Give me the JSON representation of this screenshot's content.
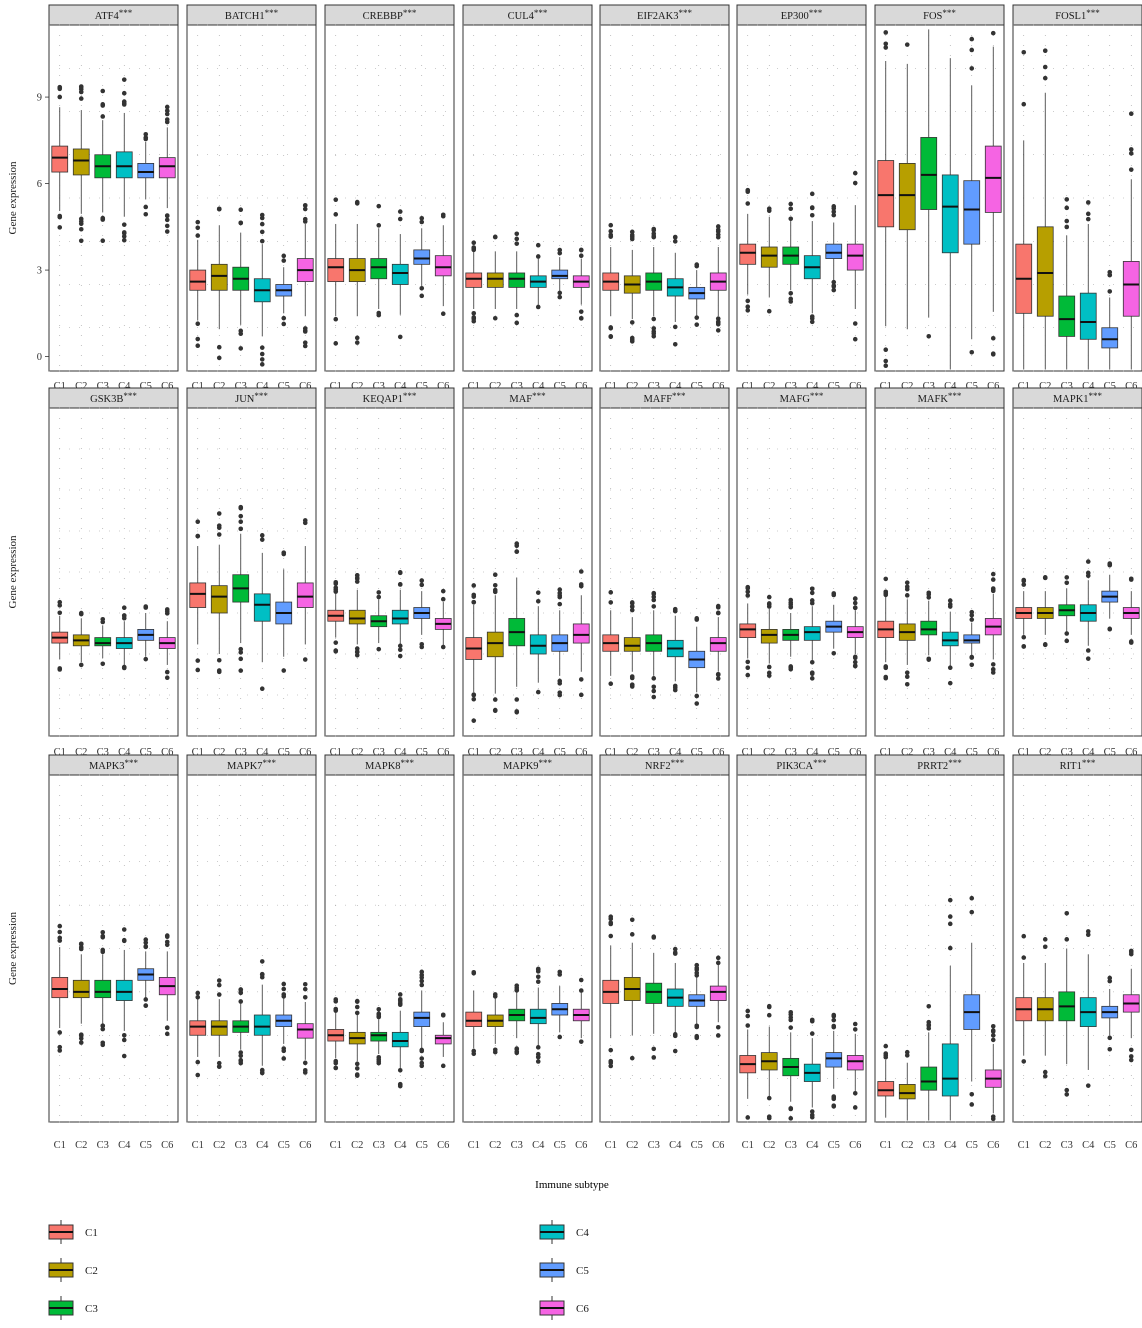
{
  "figure": {
    "xlabel": "Immune subtype",
    "ylabel": "Gene expression",
    "significance": "***"
  },
  "legend": {
    "items": [
      {
        "label": "C1",
        "color": "#F8766D"
      },
      {
        "label": "C2",
        "color": "#B79F00"
      },
      {
        "label": "C3",
        "color": "#00BA38"
      },
      {
        "label": "C4",
        "color": "#00BFC4"
      },
      {
        "label": "C5",
        "color": "#619CFF"
      },
      {
        "label": "C6",
        "color": "#F564E3"
      }
    ]
  },
  "chart_data": {
    "type": "boxplot",
    "categories": [
      "C1",
      "C2",
      "C3",
      "C4",
      "C5",
      "C6"
    ],
    "ylabel": "Gene expression",
    "xlabel": "Immune subtype",
    "ylim": [
      -0.5,
      11.5
    ],
    "yticks": [
      0,
      3,
      6,
      9
    ],
    "grid": "dotted",
    "legend_position": "bottom",
    "panels": [
      {
        "gene": "ATF4",
        "sig": "***",
        "stats": [
          [
            6.4,
            6.9,
            7.3
          ],
          [
            6.3,
            6.8,
            7.2
          ],
          [
            6.2,
            6.6,
            7.0
          ],
          [
            6.2,
            6.6,
            7.1
          ],
          [
            6.2,
            6.4,
            6.7
          ],
          [
            6.2,
            6.6,
            6.9
          ]
        ]
      },
      {
        "gene": "BATCH1",
        "sig": "***",
        "stats": [
          [
            2.3,
            2.6,
            3.0
          ],
          [
            2.3,
            2.8,
            3.2
          ],
          [
            2.3,
            2.7,
            3.1
          ],
          [
            1.9,
            2.3,
            2.7
          ],
          [
            2.1,
            2.3,
            2.5
          ],
          [
            2.6,
            3.0,
            3.4
          ]
        ]
      },
      {
        "gene": "CREBBP",
        "sig": "***",
        "stats": [
          [
            2.6,
            3.1,
            3.4
          ],
          [
            2.6,
            3.0,
            3.4
          ],
          [
            2.7,
            3.1,
            3.4
          ],
          [
            2.5,
            2.9,
            3.2
          ],
          [
            3.2,
            3.4,
            3.7
          ],
          [
            2.8,
            3.1,
            3.5
          ]
        ]
      },
      {
        "gene": "CUL4",
        "sig": "***",
        "stats": [
          [
            2.4,
            2.7,
            2.9
          ],
          [
            2.4,
            2.7,
            2.9
          ],
          [
            2.4,
            2.7,
            2.9
          ],
          [
            2.4,
            2.6,
            2.8
          ],
          [
            2.7,
            2.8,
            3.0
          ],
          [
            2.4,
            2.6,
            2.8
          ]
        ]
      },
      {
        "gene": "EIF2AK3",
        "sig": "***",
        "stats": [
          [
            2.3,
            2.6,
            2.9
          ],
          [
            2.2,
            2.5,
            2.8
          ],
          [
            2.3,
            2.6,
            2.9
          ],
          [
            2.1,
            2.4,
            2.7
          ],
          [
            2.0,
            2.2,
            2.4
          ],
          [
            2.3,
            2.6,
            2.9
          ]
        ]
      },
      {
        "gene": "EP300",
        "sig": "***",
        "stats": [
          [
            3.2,
            3.6,
            3.9
          ],
          [
            3.1,
            3.5,
            3.8
          ],
          [
            3.2,
            3.5,
            3.8
          ],
          [
            2.7,
            3.1,
            3.5
          ],
          [
            3.4,
            3.6,
            3.9
          ],
          [
            3.0,
            3.5,
            3.9
          ]
        ]
      },
      {
        "gene": "FOS",
        "sig": "***",
        "stats": [
          [
            4.5,
            5.6,
            6.8
          ],
          [
            4.4,
            5.6,
            6.7
          ],
          [
            5.1,
            6.3,
            7.6
          ],
          [
            3.6,
            5.2,
            6.3
          ],
          [
            3.9,
            5.1,
            6.1
          ],
          [
            5.0,
            6.2,
            7.3
          ]
        ]
      },
      {
        "gene": "FOSL1",
        "sig": "***",
        "stats": [
          [
            1.5,
            2.7,
            3.9
          ],
          [
            1.4,
            2.9,
            4.5
          ],
          [
            0.7,
            1.3,
            2.1
          ],
          [
            0.6,
            1.2,
            2.2
          ],
          [
            0.3,
            0.6,
            1.0
          ],
          [
            1.4,
            2.5,
            3.3
          ]
        ]
      },
      {
        "gene": "GSK3B",
        "sig": "***",
        "stats": [
          [
            2.9,
            3.1,
            3.3
          ],
          [
            2.8,
            3.0,
            3.2
          ],
          [
            2.8,
            2.9,
            3.1
          ],
          [
            2.7,
            2.9,
            3.1
          ],
          [
            3.0,
            3.2,
            3.4
          ],
          [
            2.7,
            2.9,
            3.1
          ]
        ]
      },
      {
        "gene": "JUN",
        "sig": "***",
        "stats": [
          [
            4.2,
            4.7,
            5.1
          ],
          [
            4.0,
            4.6,
            5.0
          ],
          [
            4.4,
            4.9,
            5.4
          ],
          [
            3.7,
            4.3,
            4.7
          ],
          [
            3.6,
            4.0,
            4.4
          ],
          [
            4.2,
            4.6,
            5.1
          ]
        ]
      },
      {
        "gene": "KEQAP1",
        "sig": "***",
        "stats": [
          [
            3.7,
            3.9,
            4.1
          ],
          [
            3.6,
            3.8,
            4.1
          ],
          [
            3.5,
            3.7,
            3.9
          ],
          [
            3.6,
            3.8,
            4.1
          ],
          [
            3.8,
            4.0,
            4.2
          ],
          [
            3.4,
            3.6,
            3.8
          ]
        ]
      },
      {
        "gene": "MAF",
        "sig": "***",
        "stats": [
          [
            2.3,
            2.7,
            3.1
          ],
          [
            2.4,
            2.9,
            3.3
          ],
          [
            2.8,
            3.3,
            3.8
          ],
          [
            2.5,
            2.8,
            3.2
          ],
          [
            2.6,
            2.9,
            3.2
          ],
          [
            2.9,
            3.2,
            3.6
          ]
        ]
      },
      {
        "gene": "MAFF",
        "sig": "***",
        "stats": [
          [
            2.6,
            2.9,
            3.2
          ],
          [
            2.6,
            2.8,
            3.1
          ],
          [
            2.6,
            2.9,
            3.2
          ],
          [
            2.4,
            2.7,
            3.0
          ],
          [
            2.0,
            2.3,
            2.6
          ],
          [
            2.6,
            2.9,
            3.1
          ]
        ]
      },
      {
        "gene": "MAFG",
        "sig": "***",
        "stats": [
          [
            3.1,
            3.4,
            3.6
          ],
          [
            2.9,
            3.2,
            3.4
          ],
          [
            3.0,
            3.2,
            3.4
          ],
          [
            3.0,
            3.3,
            3.5
          ],
          [
            3.3,
            3.5,
            3.7
          ],
          [
            3.1,
            3.3,
            3.5
          ]
        ]
      },
      {
        "gene": "MAFK",
        "sig": "***",
        "stats": [
          [
            3.1,
            3.4,
            3.7
          ],
          [
            3.0,
            3.3,
            3.6
          ],
          [
            3.2,
            3.4,
            3.7
          ],
          [
            2.8,
            3.0,
            3.3
          ],
          [
            2.9,
            3.0,
            3.2
          ],
          [
            3.2,
            3.5,
            3.8
          ]
        ]
      },
      {
        "gene": "MAPK1",
        "sig": "***",
        "stats": [
          [
            3.8,
            4.0,
            4.2
          ],
          [
            3.8,
            4.0,
            4.2
          ],
          [
            3.9,
            4.1,
            4.3
          ],
          [
            3.7,
            4.0,
            4.3
          ],
          [
            4.4,
            4.6,
            4.8
          ],
          [
            3.8,
            4.0,
            4.2
          ]
        ]
      },
      {
        "gene": "MAPK3",
        "sig": "***",
        "stats": [
          [
            3.8,
            4.1,
            4.5
          ],
          [
            3.8,
            4.0,
            4.4
          ],
          [
            3.8,
            4.0,
            4.4
          ],
          [
            3.7,
            4.0,
            4.4
          ],
          [
            4.4,
            4.6,
            4.8
          ],
          [
            3.9,
            4.2,
            4.5
          ]
        ]
      },
      {
        "gene": "MAPK7",
        "sig": "***",
        "stats": [
          [
            2.5,
            2.8,
            3.0
          ],
          [
            2.5,
            2.8,
            3.0
          ],
          [
            2.6,
            2.8,
            3.0
          ],
          [
            2.5,
            2.8,
            3.2
          ],
          [
            2.8,
            3.0,
            3.2
          ],
          [
            2.4,
            2.7,
            2.9
          ]
        ]
      },
      {
        "gene": "MAPK8",
        "sig": "***",
        "stats": [
          [
            2.3,
            2.5,
            2.7
          ],
          [
            2.2,
            2.4,
            2.6
          ],
          [
            2.3,
            2.5,
            2.6
          ],
          [
            2.1,
            2.3,
            2.6
          ],
          [
            2.8,
            3.1,
            3.3
          ],
          [
            2.2,
            2.4,
            2.5
          ]
        ]
      },
      {
        "gene": "MAPK9",
        "sig": "***",
        "stats": [
          [
            2.8,
            3.0,
            3.3
          ],
          [
            2.8,
            3.0,
            3.2
          ],
          [
            3.0,
            3.2,
            3.4
          ],
          [
            2.9,
            3.1,
            3.4
          ],
          [
            3.2,
            3.4,
            3.6
          ],
          [
            3.0,
            3.2,
            3.4
          ]
        ]
      },
      {
        "gene": "NRF2",
        "sig": "***",
        "stats": [
          [
            3.6,
            4.0,
            4.4
          ],
          [
            3.7,
            4.1,
            4.5
          ],
          [
            3.6,
            4.0,
            4.3
          ],
          [
            3.5,
            3.8,
            4.1
          ],
          [
            3.5,
            3.7,
            3.9
          ],
          [
            3.7,
            4.0,
            4.2
          ]
        ]
      },
      {
        "gene": "PIK3CA",
        "sig": "***",
        "stats": [
          [
            1.2,
            1.5,
            1.8
          ],
          [
            1.3,
            1.6,
            1.9
          ],
          [
            1.1,
            1.4,
            1.7
          ],
          [
            0.9,
            1.2,
            1.5
          ],
          [
            1.4,
            1.7,
            1.9
          ],
          [
            1.3,
            1.6,
            1.8
          ]
        ]
      },
      {
        "gene": "PRRT2",
        "sig": "***",
        "stats": [
          [
            0.4,
            0.6,
            0.9
          ],
          [
            0.3,
            0.5,
            0.8
          ],
          [
            0.6,
            0.9,
            1.4
          ],
          [
            0.4,
            1.0,
            2.2
          ],
          [
            2.7,
            3.3,
            3.9
          ],
          [
            0.7,
            1.0,
            1.3
          ]
        ]
      },
      {
        "gene": "RIT1",
        "sig": "***",
        "stats": [
          [
            3.0,
            3.4,
            3.8
          ],
          [
            3.0,
            3.4,
            3.8
          ],
          [
            3.0,
            3.5,
            4.0
          ],
          [
            2.8,
            3.3,
            3.8
          ],
          [
            3.1,
            3.3,
            3.5
          ],
          [
            3.3,
            3.6,
            3.9
          ]
        ]
      }
    ]
  }
}
